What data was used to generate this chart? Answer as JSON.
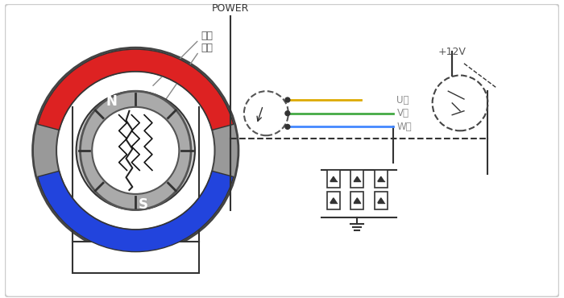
{
  "title": "",
  "bg_color": "#ffffff",
  "border_color": "#cccccc",
  "line_color": "#000000",
  "dashed_color": "#555555",
  "power_label": "POWER",
  "plus12v_label": "+12V",
  "w_label": "W相",
  "v_label": "V相",
  "u_label": "U相",
  "rotor_label": "转子",
  "stator_label": "定子",
  "n_label": "N",
  "s_label": "S",
  "w_color": "#4488ff",
  "v_color": "#44aa44",
  "u_color": "#ddaa00",
  "red_arc_color": "#dd2222",
  "blue_arc_color": "#2244dd",
  "gray_ring_color": "#999999",
  "gray_fill": "#bbbbbb",
  "dark_gray": "#555555"
}
